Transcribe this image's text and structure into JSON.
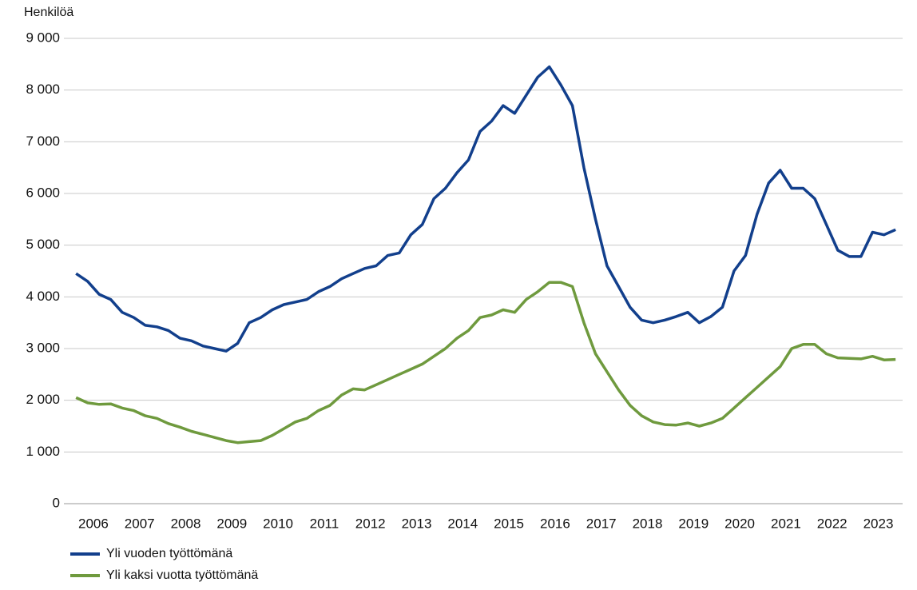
{
  "chart_data": {
    "type": "line",
    "y_label": "Henkilöä",
    "categories": [
      "2006",
      null,
      null,
      null,
      "2007",
      null,
      null,
      null,
      "2008",
      null,
      null,
      null,
      "2009",
      null,
      null,
      null,
      "2010",
      null,
      null,
      null,
      "2011",
      null,
      null,
      null,
      "2012",
      null,
      null,
      null,
      "2013",
      null,
      null,
      null,
      "2014",
      null,
      null,
      null,
      "2015",
      null,
      null,
      null,
      "2016",
      null,
      null,
      null,
      "2017",
      null,
      null,
      null,
      "2018",
      null,
      null,
      null,
      "2019",
      null,
      null,
      null,
      "2020",
      null,
      null,
      null,
      "2021",
      null,
      null,
      null,
      "2022",
      null,
      null,
      null,
      "2023",
      null,
      null,
      null
    ],
    "series": [
      {
        "name": "Yli vuoden työttömänä",
        "color": "#123f8c",
        "values": [
          4450,
          4300,
          4050,
          3950,
          3700,
          3600,
          3450,
          3420,
          3350,
          3200,
          3150,
          3050,
          3000,
          2950,
          3100,
          3500,
          3600,
          3750,
          3850,
          3900,
          3950,
          4100,
          4200,
          4350,
          4450,
          4550,
          4600,
          4800,
          4850,
          5200,
          5400,
          5900,
          6100,
          6400,
          6650,
          7200,
          7400,
          7700,
          7550,
          7900,
          8250,
          8450,
          8100,
          7700,
          6500,
          5500,
          4600,
          4200,
          3800,
          3550,
          3500,
          3550,
          3620,
          3700,
          3500,
          3620,
          3800,
          4500,
          4800,
          5600,
          6200,
          6450,
          6100,
          6100,
          5900,
          5400,
          4900,
          4780,
          4780,
          5250,
          5200,
          5300
        ]
      },
      {
        "name": "Yli kaksi vuotta työttömänä",
        "color": "#6f9a3e",
        "values": [
          2050,
          1950,
          1920,
          1930,
          1850,
          1800,
          1700,
          1650,
          1550,
          1480,
          1400,
          1340,
          1280,
          1220,
          1180,
          1200,
          1220,
          1320,
          1450,
          1580,
          1650,
          1800,
          1900,
          2100,
          2220,
          2200,
          2300,
          2400,
          2500,
          2600,
          2700,
          2850,
          3000,
          3200,
          3350,
          3600,
          3650,
          3750,
          3700,
          3950,
          4100,
          4280,
          4280,
          4200,
          3500,
          2900,
          2550,
          2200,
          1900,
          1700,
          1580,
          1530,
          1520,
          1560,
          1500,
          1560,
          1650,
          1850,
          2050,
          2250,
          2450,
          2650,
          3000,
          3080,
          3080,
          2900,
          2820,
          2810,
          2800,
          2850,
          2780,
          2790
        ]
      }
    ],
    "ylim": [
      0,
      9000
    ],
    "yticks": [
      0,
      {
        "value": 1000,
        "label": "1 000"
      },
      {
        "value": 2000,
        "label": "2 000"
      },
      {
        "value": 3000,
        "label": "3 000"
      },
      {
        "value": 4000,
        "label": "4 000"
      },
      {
        "value": 5000,
        "label": "5 000"
      },
      {
        "value": 6000,
        "label": "6 000"
      },
      {
        "value": 7000,
        "label": "7 000"
      },
      {
        "value": 8000,
        "label": "8 000"
      },
      {
        "value": 9000,
        "label": "9 000"
      }
    ],
    "grid": true
  }
}
